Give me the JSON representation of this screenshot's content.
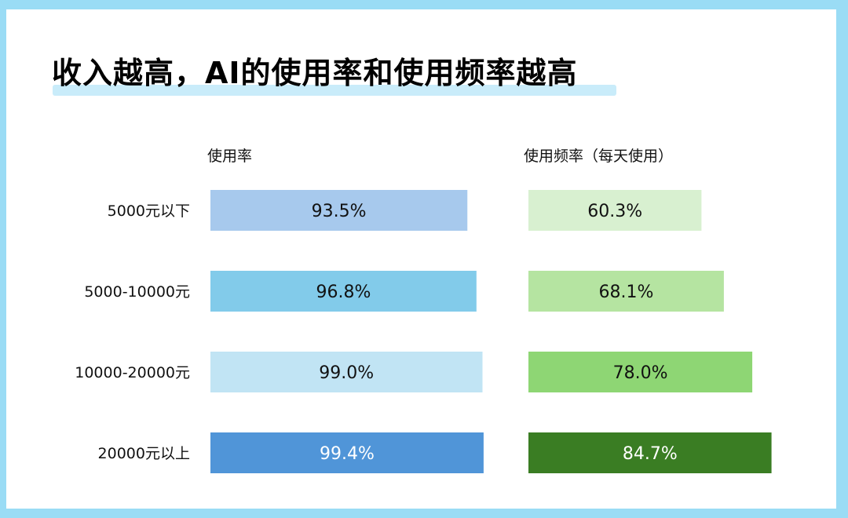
{
  "chart_data": [
    {
      "type": "bar",
      "orientation": "horizontal",
      "title": "收入越高，AI的使用率和使用频率越高",
      "subtitle": "使用率",
      "categories": [
        "5000元以下",
        "5000-10000元",
        "10000-20000元",
        "20000元以上"
      ],
      "values": [
        93.5,
        96.8,
        99.0,
        99.4
      ],
      "labels": [
        "93.5%",
        "96.8%",
        "99.0%",
        "99.4%"
      ],
      "colors": [
        "#a7c9ed",
        "#82cbea",
        "#c1e4f4",
        "#5095d8"
      ],
      "label_colors": [
        "#111111",
        "#111111",
        "#111111",
        "#ffffff"
      ],
      "unit": "%"
    },
    {
      "type": "bar",
      "orientation": "horizontal",
      "subtitle": "使用频率（每天使用）",
      "categories": [
        "5000元以下",
        "5000-10000元",
        "10000-20000元",
        "20000元以上"
      ],
      "values": [
        60.3,
        68.1,
        78.0,
        84.7
      ],
      "labels": [
        "60.3%",
        "68.1%",
        "78.0%",
        "84.7%"
      ],
      "colors": [
        "#d8f0d0",
        "#b5e4a1",
        "#8ed674",
        "#3a7d23"
      ],
      "label_colors": [
        "#111111",
        "#111111",
        "#111111",
        "#ffffff"
      ],
      "unit": "%"
    }
  ],
  "colors": {
    "frame": "#9adcf5",
    "title_highlight": "#c9ecfa"
  }
}
